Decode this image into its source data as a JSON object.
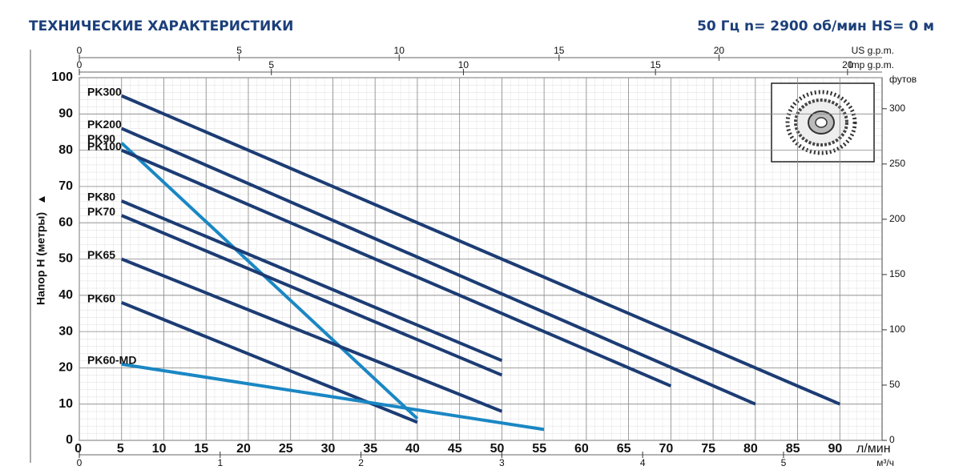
{
  "chart_data": {
    "type": "line",
    "title": "ТЕХНИЧЕСКИЕ ХАРАКТЕРИСТИКИ",
    "subtitle": "50 Гц n= 2900 об/мин HS= 0 м",
    "xlabel": "л/мин",
    "ylabel": "Напор H (метры)",
    "y2label": "футов",
    "xlim": [
      0,
      95
    ],
    "xticks": [
      0,
      5,
      10,
      15,
      20,
      25,
      30,
      35,
      40,
      45,
      50,
      55,
      60,
      65,
      70,
      75,
      80,
      85,
      90
    ],
    "ylim": [
      0,
      100
    ],
    "yticks": [
      0,
      10,
      20,
      30,
      40,
      50,
      60,
      70,
      80,
      90,
      100
    ],
    "y2lim": [
      0,
      328.1
    ],
    "y2ticks": [
      0,
      50,
      100,
      150,
      200,
      250,
      300
    ],
    "grid": true,
    "extra_x_axes": [
      {
        "label": "US g.p.m.",
        "position": "top",
        "xlim": [
          0,
          25.1
        ],
        "xticks": [
          0,
          5,
          10,
          15,
          20
        ]
      },
      {
        "label": "Imp g.p.m.",
        "position": "top",
        "xlim": [
          0,
          20.9
        ],
        "xticks": [
          0,
          5,
          10,
          15,
          20
        ]
      },
      {
        "label": "м³/ч",
        "position": "bottom",
        "xlim": [
          0,
          5.7
        ],
        "xticks": [
          0,
          1,
          2,
          3,
          4,
          5
        ]
      }
    ],
    "series": [
      {
        "name": "PK300",
        "color": "#1c3c74",
        "x": [
          5,
          90
        ],
        "values": [
          95,
          10
        ]
      },
      {
        "name": "PK200",
        "color": "#1c3c74",
        "x": [
          5,
          80
        ],
        "values": [
          86,
          10
        ]
      },
      {
        "name": "PK90",
        "color": "#1a87c4",
        "x": [
          5,
          40
        ],
        "values": [
          82,
          6
        ]
      },
      {
        "name": "PK100",
        "color": "#1c3c74",
        "x": [
          5,
          70
        ],
        "values": [
          80,
          15
        ]
      },
      {
        "name": "PK80",
        "color": "#1c3c74",
        "x": [
          5,
          50
        ],
        "values": [
          66,
          22
        ]
      },
      {
        "name": "PK70",
        "color": "#1c3c74",
        "x": [
          5,
          50
        ],
        "values": [
          62,
          18
        ]
      },
      {
        "name": "PK65",
        "color": "#1c3c74",
        "x": [
          5,
          50
        ],
        "values": [
          50,
          8
        ]
      },
      {
        "name": "PK60",
        "color": "#1c3c74",
        "x": [
          5,
          40
        ],
        "values": [
          38,
          5
        ]
      },
      {
        "name": "PK60-MD",
        "color": "#1a87c4",
        "x": [
          5,
          55
        ],
        "values": [
          21,
          3
        ]
      }
    ]
  }
}
